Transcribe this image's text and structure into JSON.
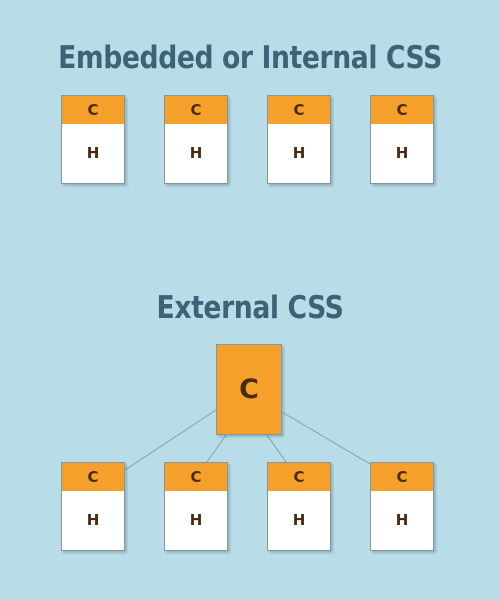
{
  "colors": {
    "background": "#b9dde8",
    "heading": "#3d6476",
    "css_orange": "#f5a02a",
    "html_white": "#ffffff",
    "letter": "#4a2a12",
    "connector": "#7d9fae"
  },
  "embedded": {
    "title": "Embedded or Internal CSS",
    "docs": [
      {
        "css_label": "C",
        "html_label": "H"
      },
      {
        "css_label": "C",
        "html_label": "H"
      },
      {
        "css_label": "C",
        "html_label": "H"
      },
      {
        "css_label": "C",
        "html_label": "H"
      }
    ]
  },
  "external": {
    "title": "External CSS",
    "shared_css_label": "C",
    "docs": [
      {
        "css_label": "C",
        "html_label": "H"
      },
      {
        "css_label": "C",
        "html_label": "H"
      },
      {
        "css_label": "C",
        "html_label": "H"
      },
      {
        "css_label": "C",
        "html_label": "H"
      }
    ]
  }
}
